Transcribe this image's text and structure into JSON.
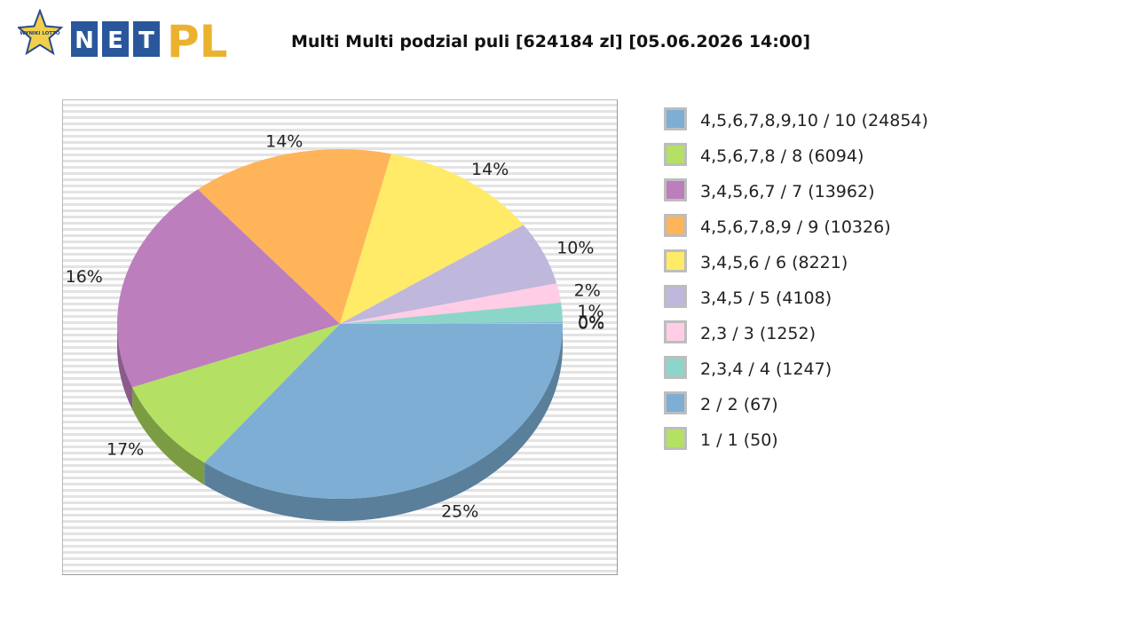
{
  "header": {
    "logo_badge_text": "WYNIKI LOTTO",
    "logo_letters": [
      "N",
      "E",
      "T"
    ],
    "logo_pl": "PL"
  },
  "chart_data": {
    "type": "pie",
    "title": "Multi Multi podzial puli [624184 zl] [05.06.2026 14:00]",
    "legend_position": "right",
    "style": "3d",
    "grid": false,
    "slices": [
      {
        "label": "4,5,6,7,8,9,10 / 10 (24854)",
        "value": 24854,
        "percent_label": "25%",
        "color": "#7eaed3",
        "side_color": "#597f9b"
      },
      {
        "label": "4,5,6,7,8 / 8 (6094)",
        "value": 6094,
        "percent_label": "17%",
        "color": "#b4e163",
        "side_color": "#7c9c43"
      },
      {
        "label": "3,4,5,6,7 / 7 (13962)",
        "value": 13962,
        "percent_label": "16%",
        "color": "#bd7ebd",
        "side_color": "#8b5c8b"
      },
      {
        "label": "4,5,6,7,8,9 / 9 (10326)",
        "value": 10326,
        "percent_label": "14%",
        "color": "#ffb45a",
        "side_color": "#b98240"
      },
      {
        "label": "3,4,5,6 / 6 (8221)",
        "value": 8221,
        "percent_label": "14%",
        "color": "#ffeb67",
        "side_color": "#bba94a"
      },
      {
        "label": "3,4,5 / 5 (4108)",
        "value": 4108,
        "percent_label": "10%",
        "color": "#bfb8dc",
        "side_color": "#8c87a1"
      },
      {
        "label": "2,3 / 3 (1252)",
        "value": 1252,
        "percent_label": "2%",
        "color": "#ffcde6",
        "side_color": "#bd97a9"
      },
      {
        "label": "2,3,4 / 4 (1247)",
        "value": 1247,
        "percent_label": "1%",
        "color": "#8cd6c9",
        "side_color": "#659b92"
      },
      {
        "label": "2 / 2 (67)",
        "value": 67,
        "percent_label": "0%",
        "color": "#7eaed3",
        "side_color": "#597f9b"
      },
      {
        "label": "1 / 1 (50)",
        "value": 50,
        "percent_label": "0%",
        "color": "#b4e163",
        "side_color": "#7c9c43"
      }
    ]
  }
}
